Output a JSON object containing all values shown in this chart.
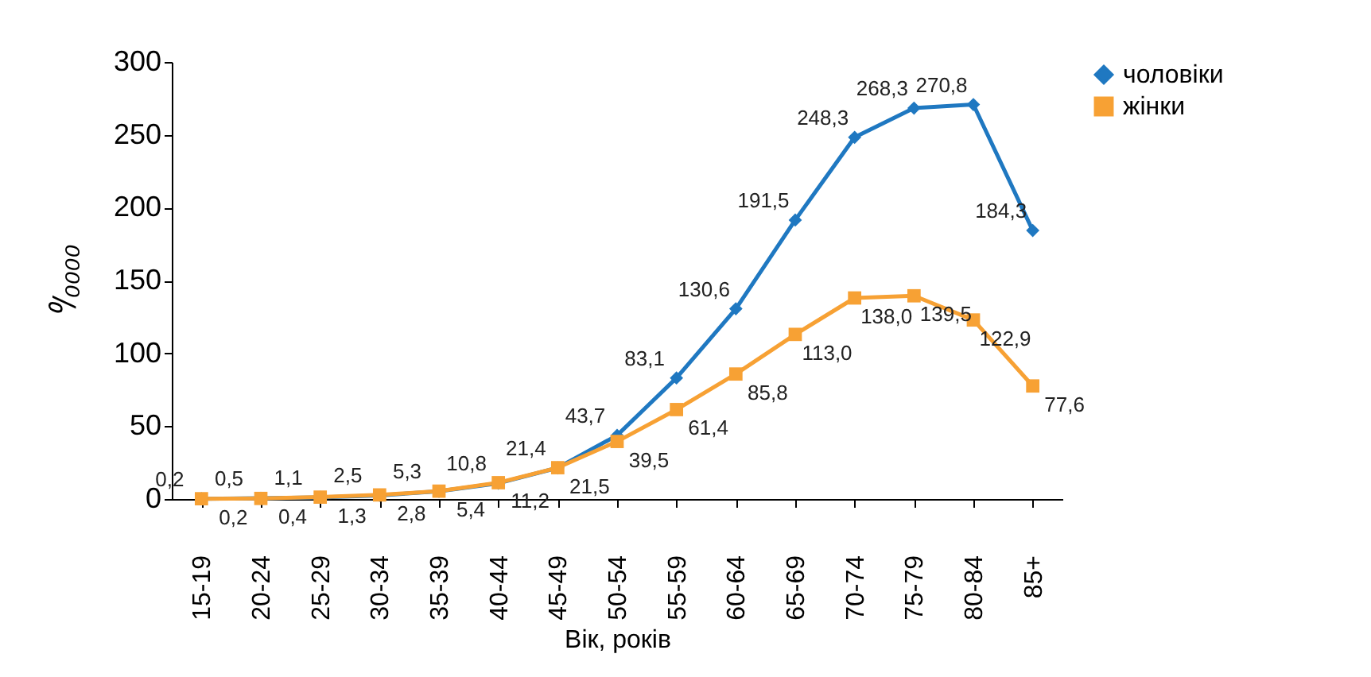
{
  "chart_data": {
    "type": "line",
    "xlabel": "Вік, років",
    "ylabel": "⁰/₀₀₀₀",
    "categories": [
      "15-19",
      "20-24",
      "25-29",
      "30-34",
      "35-39",
      "40-44",
      "45-49",
      "50-54",
      "55-59",
      "60-64",
      "65-69",
      "70-74",
      "75-79",
      "80-84",
      "85+"
    ],
    "series": [
      {
        "name": "чоловіки",
        "color": "#1f78c1",
        "marker": "diamond",
        "values": [
          0.2,
          0.5,
          1.1,
          2.5,
          5.3,
          10.8,
          21.4,
          43.7,
          83.1,
          130.6,
          191.5,
          248.3,
          268.3,
          270.8,
          184.3
        ],
        "value_labels": [
          "0,2",
          "0,5",
          "1,1",
          "2,5",
          "5,3",
          "10,8",
          "21,4",
          "43,7",
          "83,1",
          "130,6",
          "191,5",
          "248,3",
          "268,3",
          "270,8",
          "184,3"
        ]
      },
      {
        "name": "жінки",
        "color": "#f7a134",
        "marker": "square",
        "values": [
          0.2,
          0.4,
          1.3,
          2.8,
          5.4,
          11.2,
          21.5,
          39.5,
          61.4,
          85.8,
          113.0,
          138.0,
          139.5,
          122.9,
          77.6
        ],
        "value_labels": [
          "0,2",
          "0,4",
          "1,3",
          "2,8",
          "5,4",
          "11,2",
          "21,5",
          "39,5",
          "61,4",
          "85,8",
          "113,0",
          "138,0",
          "139,5",
          "122,9",
          "77,6"
        ]
      }
    ],
    "ylim": [
      0,
      300
    ],
    "yticks": [
      0,
      50,
      100,
      150,
      200,
      250,
      300
    ],
    "grid": false,
    "legend": "right"
  }
}
